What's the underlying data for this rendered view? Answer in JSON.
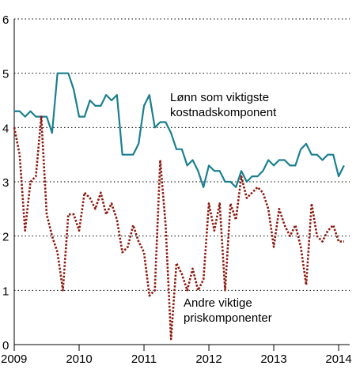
{
  "chart_data": {
    "type": "line",
    "x_ticks": [
      "2009",
      "2010",
      "2011",
      "2012",
      "2013",
      "2014"
    ],
    "y_ticks": [
      "0",
      "1",
      "2",
      "3",
      "4",
      "5",
      "6"
    ],
    "ylim": [
      0,
      6
    ],
    "grid": "horizontal dotted",
    "annotations": [
      {
        "series": 0,
        "lines": [
          "Lønn som viktigste",
          "kostnadskomponent"
        ]
      },
      {
        "series": 1,
        "lines": [
          "Andre viktige",
          "priskomponenter"
        ]
      }
    ],
    "series": [
      {
        "name": "Lønn som viktigste kostnadskomponent",
        "color": "#1a7f8e",
        "style": "solid",
        "x": [
          "2009-01",
          "2009-02",
          "2009-03",
          "2009-04",
          "2009-05",
          "2009-06",
          "2009-07",
          "2009-08",
          "2009-09",
          "2009-10",
          "2009-11",
          "2009-12",
          "2010-01",
          "2010-02",
          "2010-03",
          "2010-04",
          "2010-05",
          "2010-06",
          "2010-07",
          "2010-08",
          "2010-09",
          "2010-10",
          "2010-11",
          "2010-12",
          "2011-01",
          "2011-02",
          "2011-03",
          "2011-04",
          "2011-05",
          "2011-06",
          "2011-07",
          "2011-08",
          "2011-09",
          "2011-10",
          "2011-11",
          "2011-12",
          "2012-01",
          "2012-02",
          "2012-03",
          "2012-04",
          "2012-05",
          "2012-06",
          "2012-07",
          "2012-08",
          "2012-09",
          "2012-10",
          "2012-11",
          "2012-12",
          "2013-01",
          "2013-02",
          "2013-03",
          "2013-04",
          "2013-05",
          "2013-06",
          "2013-07",
          "2013-08",
          "2013-09",
          "2013-10",
          "2013-11",
          "2013-12",
          "2014-01",
          "2014-02"
        ],
        "values": [
          4.3,
          4.3,
          4.2,
          4.3,
          4.2,
          4.2,
          4.2,
          3.9,
          5.0,
          5.0,
          5.0,
          4.7,
          4.2,
          4.2,
          4.5,
          4.4,
          4.4,
          4.6,
          4.5,
          4.6,
          3.5,
          3.5,
          3.5,
          3.7,
          4.4,
          4.6,
          4.0,
          4.1,
          4.1,
          3.9,
          3.6,
          3.6,
          3.3,
          3.4,
          3.2,
          2.9,
          3.3,
          3.2,
          3.2,
          3.0,
          3.0,
          2.9,
          3.2,
          3.0,
          3.1,
          3.1,
          3.2,
          3.4,
          3.3,
          3.4,
          3.4,
          3.3,
          3.3,
          3.6,
          3.7,
          3.5,
          3.5,
          3.4,
          3.5,
          3.5,
          3.1,
          3.3
        ]
      },
      {
        "name": "Andre viktige priskomponenter",
        "color": "#8b1a10",
        "style": "dotted",
        "x": [
          "2009-01",
          "2009-02",
          "2009-03",
          "2009-04",
          "2009-05",
          "2009-06",
          "2009-07",
          "2009-08",
          "2009-09",
          "2009-10",
          "2009-11",
          "2009-12",
          "2010-01",
          "2010-02",
          "2010-03",
          "2010-04",
          "2010-05",
          "2010-06",
          "2010-07",
          "2010-08",
          "2010-09",
          "2010-10",
          "2010-11",
          "2010-12",
          "2011-01",
          "2011-02",
          "2011-03",
          "2011-04",
          "2011-05",
          "2011-06",
          "2011-07",
          "2011-08",
          "2011-09",
          "2011-10",
          "2011-11",
          "2011-12",
          "2012-01",
          "2012-02",
          "2012-03",
          "2012-04",
          "2012-05",
          "2012-06",
          "2012-07",
          "2012-08",
          "2012-09",
          "2012-10",
          "2012-11",
          "2012-12",
          "2013-01",
          "2013-02",
          "2013-03",
          "2013-04",
          "2013-05",
          "2013-06",
          "2013-07",
          "2013-08",
          "2013-09",
          "2013-10",
          "2013-11",
          "2013-12",
          "2014-01",
          "2014-02"
        ],
        "values": [
          4.0,
          3.5,
          2.1,
          3.0,
          3.1,
          4.2,
          2.4,
          2.0,
          1.7,
          1.0,
          2.4,
          2.4,
          2.1,
          2.8,
          2.7,
          2.5,
          2.8,
          2.4,
          2.6,
          2.3,
          1.7,
          1.8,
          2.2,
          1.9,
          1.7,
          0.9,
          1.0,
          3.4,
          2.2,
          0.1,
          1.5,
          1.3,
          1.0,
          1.4,
          1.0,
          1.2,
          2.6,
          2.1,
          2.6,
          1.0,
          2.6,
          2.3,
          3.1,
          2.7,
          2.8,
          2.9,
          2.8,
          2.5,
          1.8,
          2.5,
          2.2,
          2.0,
          2.2,
          1.8,
          1.1,
          2.6,
          2.0,
          1.9,
          2.1,
          2.2,
          1.9,
          1.9
        ]
      }
    ]
  }
}
